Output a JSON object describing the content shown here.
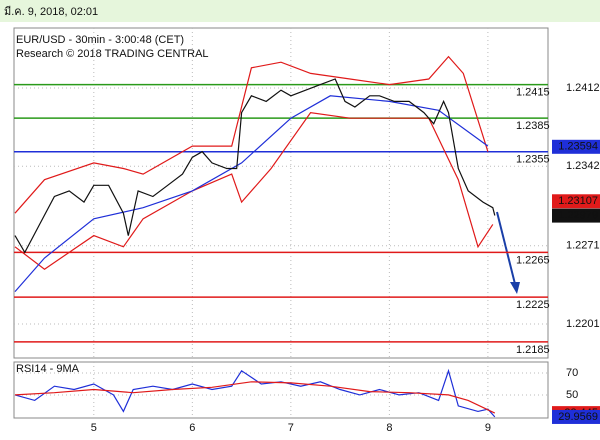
{
  "header": {
    "date": "มี.ค. 9, 2018, 02:01"
  },
  "chart_data": [
    {
      "type": "line",
      "title": "EUR/USD - 30min - 3:00:48 (CET)",
      "subtitle": "Research © 2018 TRADING CENTRAL",
      "xlim": [
        4.19,
        9.61
      ],
      "xticks": [
        5,
        6,
        7,
        8,
        9
      ],
      "ylim": [
        1.21706,
        1.24656
      ],
      "yticks": [
        1.2412,
        1.2342,
        1.2271,
        1.2201
      ],
      "grid": true,
      "levels": [
        {
          "value": 1.2415,
          "color": "#2a9a1a"
        },
        {
          "value": 1.2385,
          "color": "#2a9a1a"
        },
        {
          "value": 1.2355,
          "color": "#1f2fd8"
        },
        {
          "value": 1.2265,
          "color": "#e01a1a"
        },
        {
          "value": 1.2225,
          "color": "#e01a1a"
        },
        {
          "value": 1.2185,
          "color": "#e01a1a"
        }
      ],
      "price_tags": [
        {
          "value": 1.23594,
          "color": "#1f2fd8"
        },
        {
          "value": 1.23107,
          "color": "#e01a1a"
        },
        {
          "value": 1.22979,
          "color": "#111111"
        }
      ],
      "series": [
        {
          "color": "#e01a1a",
          "x": [
            4.2,
            4.5,
            5.0,
            5.3,
            5.5,
            6.0,
            6.4,
            6.6,
            6.9,
            7.2,
            7.6,
            8.0,
            8.4,
            8.6,
            8.75,
            9.0
          ],
          "values": [
            1.23,
            1.233,
            1.2345,
            1.234,
            1.2335,
            1.236,
            1.236,
            1.243,
            1.2435,
            1.2425,
            1.242,
            1.2415,
            1.242,
            1.244,
            1.2425,
            1.2355
          ]
        },
        {
          "color": "#e01a1a",
          "x": [
            4.2,
            4.5,
            5.0,
            5.3,
            5.5,
            6.0,
            6.4,
            6.5,
            6.8,
            7.2,
            7.6,
            8.0,
            8.4,
            8.7,
            8.9,
            9.05
          ],
          "values": [
            1.227,
            1.225,
            1.228,
            1.227,
            1.2295,
            1.232,
            1.2335,
            1.231,
            1.234,
            1.239,
            1.2385,
            1.2385,
            1.2385,
            1.233,
            1.227,
            1.229
          ]
        },
        {
          "color": "#1f2fd8",
          "x": [
            4.2,
            4.5,
            5.0,
            5.5,
            6.0,
            6.5,
            7.0,
            7.4,
            8.0,
            8.5,
            9.0
          ],
          "values": [
            1.223,
            1.226,
            1.2295,
            1.2305,
            1.232,
            1.2345,
            1.2385,
            1.2405,
            1.24,
            1.2392,
            1.236
          ]
        },
        {
          "color": "#111111",
          "x": [
            4.2,
            4.3,
            4.45,
            4.6,
            4.75,
            4.9,
            5.0,
            5.15,
            5.3,
            5.35,
            5.45,
            5.6,
            5.75,
            5.9,
            6.0,
            6.1,
            6.2,
            6.35,
            6.45,
            6.5,
            6.6,
            6.75,
            6.9,
            7.0,
            7.15,
            7.3,
            7.45,
            7.55,
            7.65,
            7.8,
            7.9,
            8.05,
            8.2,
            8.35,
            8.45,
            8.55,
            8.6,
            8.7,
            8.8,
            8.95,
            9.05,
            9.07
          ],
          "values": [
            1.228,
            1.2265,
            1.229,
            1.2315,
            1.232,
            1.231,
            1.2325,
            1.2325,
            1.23,
            1.228,
            1.232,
            1.2315,
            1.2325,
            1.2335,
            1.235,
            1.2355,
            1.2345,
            1.234,
            1.234,
            1.239,
            1.2405,
            1.24,
            1.241,
            1.2405,
            1.241,
            1.2415,
            1.242,
            1.24,
            1.2395,
            1.2405,
            1.2405,
            1.24,
            1.24,
            1.239,
            1.238,
            1.24,
            1.239,
            1.234,
            1.232,
            1.231,
            1.2305,
            1.2298
          ]
        }
      ]
    },
    {
      "type": "line",
      "title": "RSI14 - 9MA",
      "xlim": [
        4.19,
        9.61
      ],
      "xticks": [
        5,
        6,
        7,
        8,
        9
      ],
      "ylim": [
        29,
        80
      ],
      "yticks": [
        70,
        50
      ],
      "grid": true,
      "price_tags": [
        {
          "value": 33.445,
          "color": "#e01a1a"
        },
        {
          "value": 29.9569,
          "color": "#1f2fd8"
        }
      ],
      "series": [
        {
          "color": "#1f2fd8",
          "x": [
            4.2,
            4.4,
            4.6,
            4.8,
            5.0,
            5.2,
            5.3,
            5.4,
            5.6,
            5.8,
            6.0,
            6.2,
            6.4,
            6.5,
            6.7,
            6.9,
            7.1,
            7.3,
            7.5,
            7.7,
            7.9,
            8.1,
            8.3,
            8.5,
            8.6,
            8.7,
            8.9,
            9.0,
            9.07
          ],
          "values": [
            50,
            45,
            58,
            55,
            60,
            50,
            35,
            55,
            58,
            55,
            60,
            55,
            58,
            72,
            60,
            62,
            58,
            62,
            55,
            50,
            55,
            50,
            52,
            45,
            72,
            40,
            35,
            37,
            30
          ]
        },
        {
          "color": "#e01a1a",
          "x": [
            4.2,
            4.6,
            5.0,
            5.4,
            5.8,
            6.2,
            6.6,
            7.0,
            7.4,
            7.8,
            8.2,
            8.6,
            8.8,
            9.07
          ],
          "values": [
            50,
            52,
            55,
            52,
            55,
            57,
            62,
            61,
            58,
            53,
            52,
            50,
            45,
            33.445
          ]
        }
      ]
    }
  ]
}
